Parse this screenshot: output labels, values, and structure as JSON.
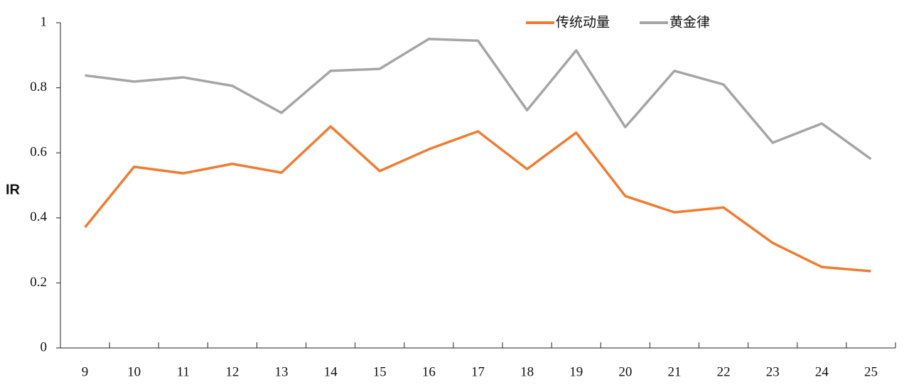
{
  "chart_data": {
    "type": "line",
    "y_label": "IR",
    "categories": [
      "9",
      "10",
      "11",
      "12",
      "13",
      "14",
      "15",
      "16",
      "17",
      "18",
      "19",
      "20",
      "21",
      "22",
      "23",
      "24",
      "25"
    ],
    "series": [
      {
        "name": "传统动量",
        "color": "#f07c32",
        "values": [
          0.371,
          0.557,
          0.537,
          0.566,
          0.539,
          0.681,
          0.544,
          0.611,
          0.666,
          0.55,
          0.662,
          0.467,
          0.417,
          0.432,
          0.323,
          0.249,
          0.236
        ]
      },
      {
        "name": "黄金律",
        "color": "#a5a5a5",
        "values": [
          0.838,
          0.819,
          0.832,
          0.806,
          0.723,
          0.852,
          0.858,
          0.95,
          0.945,
          0.731,
          0.915,
          0.679,
          0.852,
          0.81,
          0.631,
          0.69,
          0.581
        ]
      }
    ],
    "ylim": [
      0,
      1
    ],
    "yticks": [
      0,
      0.2,
      0.4,
      0.6,
      0.8,
      1
    ],
    "grid": false
  }
}
